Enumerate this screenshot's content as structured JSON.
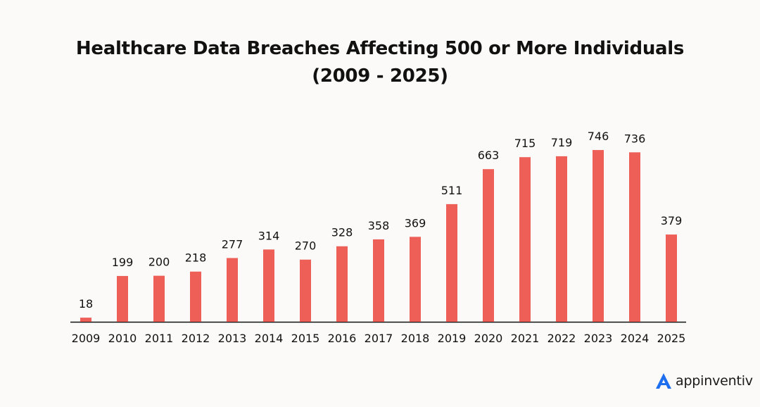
{
  "chart_data": {
    "type": "bar",
    "title": "Healthcare Data Breaches Affecting 500 or More Individuals",
    "subtitle": "(2009 - 2025)",
    "categories": [
      "2009",
      "2010",
      "2011",
      "2012",
      "2013",
      "2014",
      "2015",
      "2016",
      "2017",
      "2018",
      "2019",
      "2020",
      "2021",
      "2022",
      "2023",
      "2024",
      "2025"
    ],
    "values": [
      18,
      199,
      200,
      218,
      277,
      314,
      270,
      328,
      358,
      369,
      511,
      663,
      715,
      719,
      746,
      736,
      379
    ],
    "xlabel": "",
    "ylabel": "",
    "ylim": [
      0,
      800
    ],
    "grid": false,
    "legend": "none",
    "bar_color": "#ee5f58",
    "axis_color": "#111111"
  },
  "brand": {
    "name": "appinventiv",
    "icon": "appinventiv-logo-icon",
    "icon_color": "#1e6ef0"
  }
}
